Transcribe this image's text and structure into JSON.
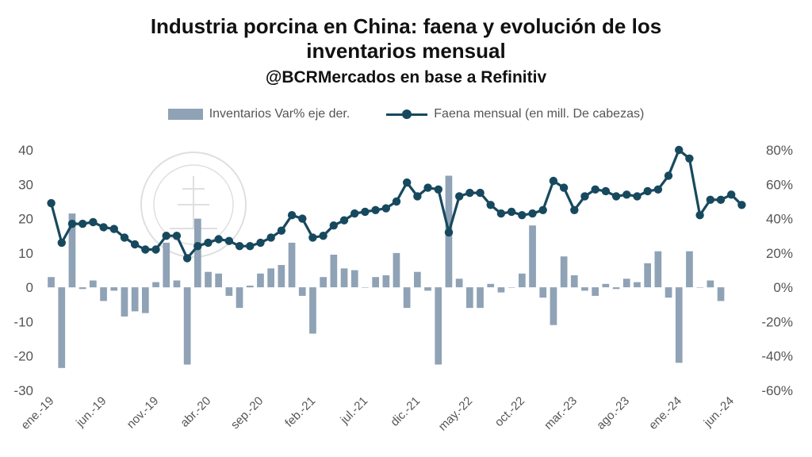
{
  "title": "Industria porcina en China: faena y evolución de los inventarios mensual",
  "title_line1": "Industria porcina en China: faena y evolución de los",
  "title_line2": "inventarios mensual",
  "subtitle": "@BCRMercados en base a Refinitiv",
  "watermark": "BOLSA DE COMERCIO DE ROSARIO",
  "colors": {
    "bars": "#8fa2b6",
    "line": "#17495e",
    "grid": "#e6e6e6",
    "ticks": "#555555"
  },
  "chart_data": {
    "type": "bar+line",
    "title": "Industria porcina en China: faena y evolución de los inventarios mensual",
    "subtitle": "@BCRMercados en base a Refinitiv",
    "legend_position": "top",
    "grid": false,
    "left_axis": {
      "range": [
        -30,
        40
      ],
      "ticks": [
        "40",
        "30",
        "20",
        "10",
        "0",
        "-10",
        "-20",
        "-30"
      ]
    },
    "right_axis": {
      "range": [
        -0.6,
        0.8
      ],
      "ticks": [
        "80%",
        "60%",
        "40%",
        "20%",
        "0%",
        "-20%",
        "-40%",
        "-60%"
      ]
    },
    "x_tick_labels": [
      {
        "index": 0,
        "label": "ene.-19"
      },
      {
        "index": 5,
        "label": "jun.-19"
      },
      {
        "index": 10,
        "label": "nov.-19"
      },
      {
        "index": 15,
        "label": "abr.-20"
      },
      {
        "index": 20,
        "label": "sep.-20"
      },
      {
        "index": 25,
        "label": "feb.-21"
      },
      {
        "index": 30,
        "label": "jul.-21"
      },
      {
        "index": 35,
        "label": "dic.-21"
      },
      {
        "index": 40,
        "label": "may.-22"
      },
      {
        "index": 45,
        "label": "oct.-22"
      },
      {
        "index": 50,
        "label": "mar.-23"
      },
      {
        "index": 55,
        "label": "ago.-23"
      },
      {
        "index": 60,
        "label": "ene.-24"
      },
      {
        "index": 65,
        "label": "jun.-24"
      }
    ],
    "series": [
      {
        "name": "Inventarios Var% eje der.",
        "type": "bar",
        "axis": "right",
        "values": [
          0.06,
          -0.47,
          0.43,
          -0.01,
          0.04,
          -0.08,
          -0.02,
          -0.17,
          -0.14,
          -0.15,
          0.03,
          0.26,
          0.04,
          -0.45,
          0.4,
          0.09,
          0.08,
          -0.05,
          -0.12,
          0.01,
          0.08,
          0.11,
          0.13,
          0.26,
          -0.05,
          -0.27,
          0.06,
          0.19,
          0.11,
          0.1,
          0.0,
          0.06,
          0.07,
          0.2,
          -0.12,
          0.09,
          -0.02,
          -0.45,
          0.65,
          0.05,
          -0.12,
          -0.12,
          0.02,
          -0.03,
          0.0,
          0.08,
          0.36,
          -0.06,
          -0.22,
          0.18,
          0.07,
          -0.02,
          -0.05,
          0.02,
          -0.01,
          0.05,
          0.03,
          0.14,
          0.21,
          -0.06,
          -0.44,
          0.21,
          0.0,
          0.04,
          -0.08
        ]
      },
      {
        "name": "Faena mensual (en mill. De cabezas)",
        "type": "line",
        "axis": "left",
        "values": [
          24.5,
          13,
          18.5,
          18.5,
          19,
          17.5,
          17,
          14.5,
          12.5,
          11,
          11,
          15,
          15,
          8.5,
          12,
          13,
          14,
          13.5,
          12,
          12,
          13,
          14.5,
          16.5,
          21,
          20,
          14.5,
          15,
          18,
          19.5,
          21.5,
          22,
          22.5,
          23,
          25,
          30.5,
          26.5,
          29,
          28.5,
          16,
          26.5,
          27.5,
          27.5,
          24,
          21.5,
          22,
          21,
          21.5,
          22.5,
          31,
          29,
          22.5,
          26.5,
          28.5,
          28,
          26.5,
          27,
          26.5,
          28,
          28.5,
          32.5,
          40,
          37.5,
          21,
          25.5,
          25.5,
          27,
          24
        ]
      }
    ]
  }
}
